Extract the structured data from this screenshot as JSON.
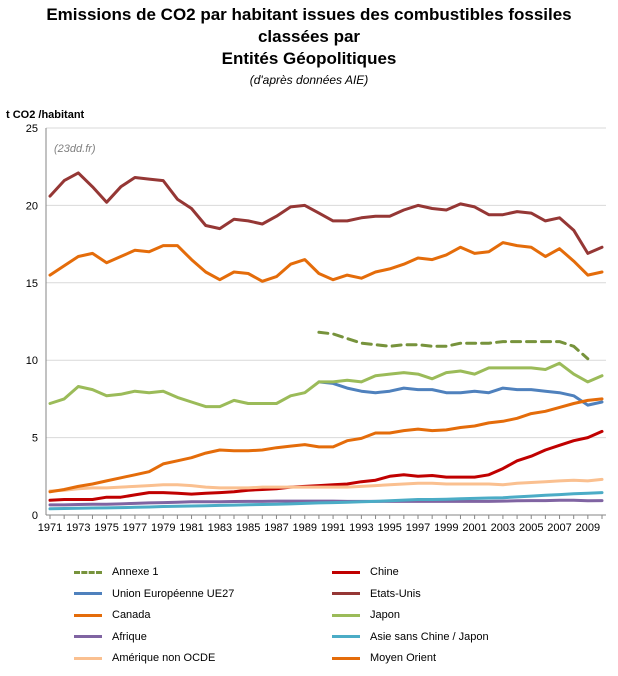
{
  "chart_data": {
    "type": "line",
    "title_lines": [
      "Emissions de CO2 par habitant issues des combustibles fossiles",
      "classées par",
      "Entités Géopolitiques"
    ],
    "subtitle": "(d'après données AIE)",
    "ylabel": "t CO2 /habitant",
    "watermark": "(23dd.fr)",
    "ylim": [
      0,
      25
    ],
    "yticks": [
      0,
      5,
      10,
      15,
      20,
      25
    ],
    "xlim": [
      1971,
      2010
    ],
    "xticks": [
      1971,
      1973,
      1975,
      1977,
      1979,
      1981,
      1983,
      1985,
      1987,
      1989,
      1991,
      1993,
      1995,
      1997,
      1999,
      2001,
      2003,
      2005,
      2007,
      2009
    ],
    "grid": "horizontal",
    "legend_position": "bottom",
    "series": [
      {
        "name": "Annexe 1",
        "color": "#77933c",
        "dashed": true,
        "x": [
          1990,
          1991,
          1992,
          1993,
          1994,
          1995,
          1996,
          1997,
          1998,
          1999,
          2000,
          2001,
          2002,
          2003,
          2004,
          2005,
          2006,
          2007,
          2008,
          2009
        ],
        "values": [
          11.8,
          11.7,
          11.4,
          11.1,
          11.0,
          10.9,
          11.0,
          11.0,
          10.9,
          10.9,
          11.1,
          11.1,
          11.1,
          11.2,
          11.2,
          11.2,
          11.2,
          11.2,
          10.9,
          10.1
        ]
      },
      {
        "name": "Chine",
        "color": "#c00000",
        "x": [
          1971,
          1972,
          1973,
          1974,
          1975,
          1976,
          1977,
          1978,
          1979,
          1980,
          1981,
          1982,
          1983,
          1984,
          1985,
          1986,
          1987,
          1988,
          1989,
          1990,
          1991,
          1992,
          1993,
          1994,
          1995,
          1996,
          1997,
          1998,
          1999,
          2000,
          2001,
          2002,
          2003,
          2004,
          2005,
          2006,
          2007,
          2008,
          2009,
          2010
        ],
        "values": [
          0.95,
          1.0,
          1.0,
          1.0,
          1.15,
          1.15,
          1.3,
          1.45,
          1.45,
          1.4,
          1.35,
          1.4,
          1.45,
          1.5,
          1.6,
          1.65,
          1.7,
          1.8,
          1.85,
          1.9,
          1.95,
          2.0,
          2.15,
          2.25,
          2.5,
          2.6,
          2.5,
          2.55,
          2.45,
          2.45,
          2.45,
          2.6,
          3.0,
          3.5,
          3.8,
          4.2,
          4.5,
          4.8,
          5.0,
          5.4
        ]
      },
      {
        "name": "Union Européenne UE27",
        "color": "#4f81bd",
        "x": [
          1990,
          1991,
          1992,
          1993,
          1994,
          1995,
          1996,
          1997,
          1998,
          1999,
          2000,
          2001,
          2002,
          2003,
          2004,
          2005,
          2006,
          2007,
          2008,
          2009,
          2010
        ],
        "values": [
          8.6,
          8.5,
          8.2,
          8.0,
          7.9,
          8.0,
          8.2,
          8.1,
          8.1,
          7.9,
          7.9,
          8.0,
          7.9,
          8.2,
          8.1,
          8.1,
          8.0,
          7.9,
          7.7,
          7.1,
          7.3
        ]
      },
      {
        "name": "Etats-Unis",
        "color": "#953735",
        "x": [
          1971,
          1972,
          1973,
          1974,
          1975,
          1976,
          1977,
          1978,
          1979,
          1980,
          1981,
          1982,
          1983,
          1984,
          1985,
          1986,
          1987,
          1988,
          1989,
          1990,
          1991,
          1992,
          1993,
          1994,
          1995,
          1996,
          1997,
          1998,
          1999,
          2000,
          2001,
          2002,
          2003,
          2004,
          2005,
          2006,
          2007,
          2008,
          2009,
          2010
        ],
        "values": [
          20.6,
          21.6,
          22.1,
          21.2,
          20.2,
          21.2,
          21.8,
          21.7,
          21.6,
          20.4,
          19.8,
          18.7,
          18.5,
          19.1,
          19.0,
          18.8,
          19.3,
          19.9,
          20.0,
          19.5,
          19.0,
          19.0,
          19.2,
          19.3,
          19.3,
          19.7,
          20.0,
          19.8,
          19.7,
          20.1,
          19.9,
          19.4,
          19.4,
          19.6,
          19.5,
          19.0,
          19.2,
          18.4,
          16.9,
          17.3
        ]
      },
      {
        "name": "Canada",
        "color": "#e46c0a",
        "x": [
          1971,
          1972,
          1973,
          1974,
          1975,
          1976,
          1977,
          1978,
          1979,
          1980,
          1981,
          1982,
          1983,
          1984,
          1985,
          1986,
          1987,
          1988,
          1989,
          1990,
          1991,
          1992,
          1993,
          1994,
          1995,
          1996,
          1997,
          1998,
          1999,
          2000,
          2001,
          2002,
          2003,
          2004,
          2005,
          2006,
          2007,
          2008,
          2009,
          2010
        ],
        "values": [
          15.5,
          16.1,
          16.7,
          16.9,
          16.3,
          16.7,
          17.1,
          17.0,
          17.4,
          17.4,
          16.5,
          15.7,
          15.2,
          15.7,
          15.6,
          15.1,
          15.4,
          16.2,
          16.5,
          15.6,
          15.2,
          15.5,
          15.3,
          15.7,
          15.9,
          16.2,
          16.6,
          16.5,
          16.8,
          17.3,
          16.9,
          17.0,
          17.6,
          17.4,
          17.3,
          16.7,
          17.2,
          16.4,
          15.5,
          15.7
        ]
      },
      {
        "name": "Japon",
        "color": "#9bbb59",
        "x": [
          1971,
          1972,
          1973,
          1974,
          1975,
          1976,
          1977,
          1978,
          1979,
          1980,
          1981,
          1982,
          1983,
          1984,
          1985,
          1986,
          1987,
          1988,
          1989,
          1990,
          1991,
          1992,
          1993,
          1994,
          1995,
          1996,
          1997,
          1998,
          1999,
          2000,
          2001,
          2002,
          2003,
          2004,
          2005,
          2006,
          2007,
          2008,
          2009,
          2010
        ],
        "values": [
          7.2,
          7.5,
          8.3,
          8.1,
          7.7,
          7.8,
          8.0,
          7.9,
          8.0,
          7.6,
          7.3,
          7.0,
          7.0,
          7.4,
          7.2,
          7.2,
          7.2,
          7.7,
          7.9,
          8.6,
          8.6,
          8.7,
          8.6,
          9.0,
          9.1,
          9.2,
          9.1,
          8.8,
          9.2,
          9.3,
          9.1,
          9.5,
          9.5,
          9.5,
          9.5,
          9.4,
          9.8,
          9.1,
          8.6,
          9.0
        ]
      },
      {
        "name": "Afrique",
        "color": "#8064a2",
        "x": [
          1971,
          1972,
          1973,
          1974,
          1975,
          1976,
          1977,
          1978,
          1979,
          1980,
          1981,
          1982,
          1983,
          1984,
          1985,
          1986,
          1987,
          1988,
          1989,
          1990,
          1991,
          1992,
          1993,
          1994,
          1995,
          1996,
          1997,
          1998,
          1999,
          2000,
          2001,
          2002,
          2003,
          2004,
          2005,
          2006,
          2007,
          2008,
          2009,
          2010
        ],
        "values": [
          0.65,
          0.65,
          0.68,
          0.7,
          0.7,
          0.72,
          0.75,
          0.78,
          0.8,
          0.82,
          0.85,
          0.85,
          0.85,
          0.87,
          0.88,
          0.88,
          0.9,
          0.9,
          0.9,
          0.9,
          0.9,
          0.88,
          0.88,
          0.88,
          0.88,
          0.88,
          0.88,
          0.88,
          0.88,
          0.88,
          0.88,
          0.88,
          0.9,
          0.92,
          0.93,
          0.93,
          0.95,
          0.95,
          0.92,
          0.93
        ]
      },
      {
        "name": "Asie sans Chine / Japon",
        "color": "#4bacc6",
        "x": [
          1971,
          1972,
          1973,
          1974,
          1975,
          1976,
          1977,
          1978,
          1979,
          1980,
          1981,
          1982,
          1983,
          1984,
          1985,
          1986,
          1987,
          1988,
          1989,
          1990,
          1991,
          1992,
          1993,
          1994,
          1995,
          1996,
          1997,
          1998,
          1999,
          2000,
          2001,
          2002,
          2003,
          2004,
          2005,
          2006,
          2007,
          2008,
          2009,
          2010
        ],
        "values": [
          0.4,
          0.42,
          0.44,
          0.45,
          0.46,
          0.48,
          0.5,
          0.52,
          0.55,
          0.56,
          0.58,
          0.6,
          0.62,
          0.64,
          0.66,
          0.68,
          0.7,
          0.72,
          0.75,
          0.78,
          0.8,
          0.82,
          0.85,
          0.88,
          0.92,
          0.96,
          1.0,
          1.0,
          1.02,
          1.05,
          1.07,
          1.1,
          1.12,
          1.17,
          1.22,
          1.27,
          1.32,
          1.37,
          1.4,
          1.45
        ]
      },
      {
        "name": "Amérique non OCDE",
        "color": "#fac090",
        "x": [
          1971,
          1972,
          1973,
          1974,
          1975,
          1976,
          1977,
          1978,
          1979,
          1980,
          1981,
          1982,
          1983,
          1984,
          1985,
          1986,
          1987,
          1988,
          1989,
          1990,
          1991,
          1992,
          1993,
          1994,
          1995,
          1996,
          1997,
          1998,
          1999,
          2000,
          2001,
          2002,
          2003,
          2004,
          2005,
          2006,
          2007,
          2008,
          2009,
          2010
        ],
        "values": [
          1.55,
          1.6,
          1.7,
          1.75,
          1.75,
          1.8,
          1.85,
          1.9,
          1.95,
          1.95,
          1.9,
          1.8,
          1.75,
          1.75,
          1.75,
          1.8,
          1.8,
          1.8,
          1.8,
          1.8,
          1.8,
          1.8,
          1.85,
          1.9,
          1.95,
          2.0,
          2.05,
          2.05,
          2.0,
          2.0,
          2.0,
          2.0,
          1.95,
          2.05,
          2.1,
          2.15,
          2.2,
          2.25,
          2.2,
          2.3
        ]
      },
      {
        "name": "Moyen Orient",
        "color": "#e46c0a",
        "x": [
          1971,
          1972,
          1973,
          1974,
          1975,
          1976,
          1977,
          1978,
          1979,
          1980,
          1981,
          1982,
          1983,
          1984,
          1985,
          1986,
          1987,
          1988,
          1989,
          1990,
          1991,
          1992,
          1993,
          1994,
          1995,
          1996,
          1997,
          1998,
          1999,
          2000,
          2001,
          2002,
          2003,
          2004,
          2005,
          2006,
          2007,
          2008,
          2009,
          2010
        ],
        "values": [
          1.5,
          1.65,
          1.85,
          2.0,
          2.2,
          2.4,
          2.6,
          2.8,
          3.3,
          3.5,
          3.7,
          4.0,
          4.2,
          4.15,
          4.15,
          4.2,
          4.35,
          4.45,
          4.55,
          4.4,
          4.4,
          4.8,
          4.95,
          5.3,
          5.3,
          5.45,
          5.55,
          5.45,
          5.5,
          5.65,
          5.75,
          5.95,
          6.05,
          6.25,
          6.55,
          6.7,
          6.95,
          7.2,
          7.4,
          7.5
        ]
      }
    ]
  }
}
